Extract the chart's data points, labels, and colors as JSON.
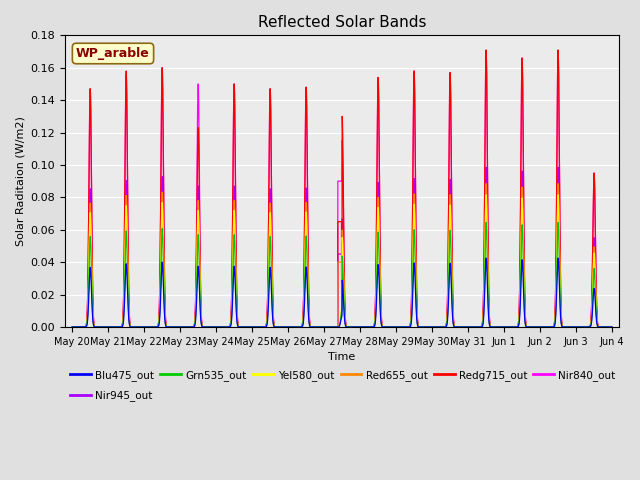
{
  "title": "Reflected Solar Bands",
  "xlabel": "Time",
  "ylabel": "Solar Raditaion (W/m2)",
  "ylim": [
    0,
    0.18
  ],
  "annotation": "WP_arable",
  "annotation_color": "#8B0000",
  "annotation_bg": "#FFFFCC",
  "background_color": "#E0E0E0",
  "plot_bg": "#EBEBEB",
  "series": [
    {
      "name": "Blu475_out",
      "color": "#0000FF",
      "lw": 1.0
    },
    {
      "name": "Grn535_out",
      "color": "#00CC00",
      "lw": 1.0
    },
    {
      "name": "Yel580_out",
      "color": "#FFFF00",
      "lw": 1.0
    },
    {
      "name": "Red655_out",
      "color": "#FF8800",
      "lw": 1.0
    },
    {
      "name": "Redg715_out",
      "color": "#FF0000",
      "lw": 1.0
    },
    {
      "name": "Nir840_out",
      "color": "#FF00FF",
      "lw": 1.0
    },
    {
      "name": "Nir945_out",
      "color": "#AA00FF",
      "lw": 1.0
    }
  ],
  "xtick_labels": [
    "May 20",
    "May 21",
    "May 22",
    "May 23",
    "May 24",
    "May 25",
    "May 26",
    "May 27",
    "May 28",
    "May 29",
    "May 30",
    "May 31",
    "Jun 1",
    "Jun 2",
    "Jun 3",
    "Jun 4"
  ],
  "nir840_peaks": [
    0.147,
    0.156,
    0.16,
    0.15,
    0.15,
    0.147,
    0.148,
    0.115,
    0.154,
    0.158,
    0.157,
    0.17,
    0.166,
    0.17,
    0.095
  ],
  "redg_peaks": [
    0.147,
    0.158,
    0.16,
    0.123,
    0.15,
    0.147,
    0.148,
    0.13,
    0.154,
    0.158,
    0.157,
    0.171,
    0.166,
    0.171,
    0.095
  ],
  "nir945_ratio": 0.58,
  "red655_ratio": 0.52,
  "yel580_ratio": 0.48,
  "grn535_ratio": 0.38,
  "blu475_ratio": 0.25,
  "n_days": 15,
  "pts_per_day": 200,
  "sigma": 0.035
}
